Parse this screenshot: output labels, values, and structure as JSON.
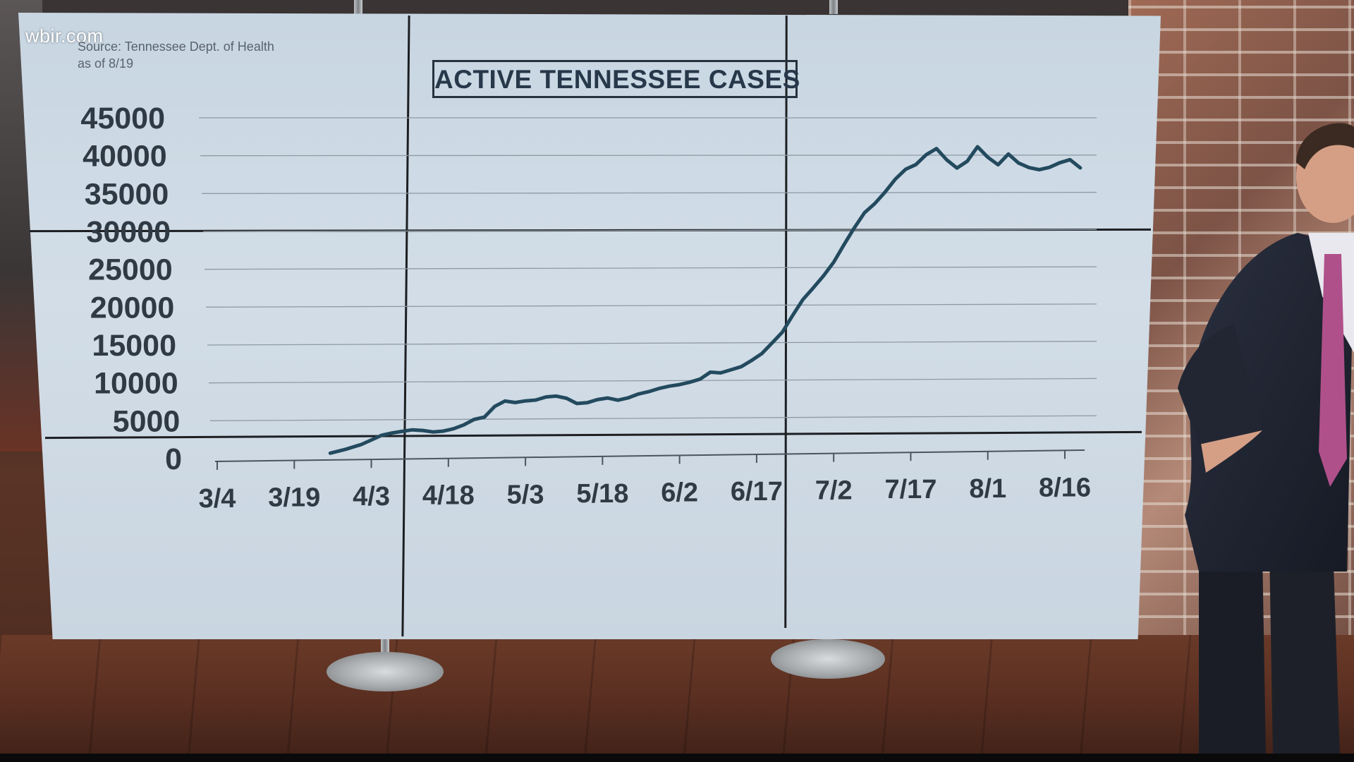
{
  "watermark": "wbir.com",
  "source_line1": "Source: Tennessee Dept. of Health",
  "source_line2": "as of 8/19",
  "colors": {
    "line": "#234a5e",
    "screen": "#cdd9e3",
    "text": "#2f3a45"
  },
  "chart_data": {
    "type": "line",
    "title": "ACTIVE TENNESSEE CASES",
    "xlabel": "",
    "ylabel": "",
    "ylim": [
      0,
      45000
    ],
    "yticks": [
      0,
      5000,
      10000,
      15000,
      20000,
      25000,
      30000,
      35000,
      40000,
      45000
    ],
    "xticks": [
      "3/4",
      "3/19",
      "4/3",
      "4/18",
      "5/3",
      "5/18",
      "6/2",
      "6/17",
      "7/2",
      "7/17",
      "8/1",
      "8/16"
    ],
    "grid": true,
    "legend": "none",
    "series": [
      {
        "x": [
          "3/26",
          "3/29",
          "4/1",
          "4/3",
          "4/5",
          "4/7",
          "4/9",
          "4/11",
          "4/13",
          "4/15",
          "4/17",
          "4/19",
          "4/21",
          "4/23",
          "4/25",
          "4/27",
          "4/29",
          "5/1",
          "5/3",
          "5/5",
          "5/7",
          "5/9",
          "5/11",
          "5/13",
          "5/15",
          "5/17",
          "5/19",
          "5/21",
          "5/23",
          "5/25",
          "5/27",
          "5/29",
          "5/31",
          "6/2",
          "6/4",
          "6/6",
          "6/8",
          "6/10",
          "6/12",
          "6/14",
          "6/16",
          "6/18",
          "6/20",
          "6/22",
          "6/24",
          "6/26",
          "6/28",
          "6/30",
          "7/2",
          "7/4",
          "7/6",
          "7/8",
          "7/10",
          "7/12",
          "7/14",
          "7/16",
          "7/18",
          "7/20",
          "7/22",
          "7/24",
          "7/26",
          "7/28",
          "7/30",
          "8/1",
          "8/3",
          "8/5",
          "8/7",
          "8/9",
          "8/11",
          "8/13",
          "8/15",
          "8/17",
          "8/19"
        ],
        "values": [
          600,
          1100,
          1700,
          2300,
          2900,
          3200,
          3400,
          3600,
          3500,
          3300,
          3400,
          3700,
          4200,
          4900,
          5200,
          6600,
          7300,
          7100,
          7300,
          7400,
          7800,
          7900,
          7600,
          6900,
          7000,
          7400,
          7600,
          7300,
          7600,
          8100,
          8400,
          8800,
          9100,
          9300,
          9600,
          10000,
          10900,
          10800,
          11200,
          11600,
          12400,
          13300,
          14700,
          16100,
          18300,
          20400,
          21900,
          23500,
          25300,
          27600,
          29800,
          31800,
          33000,
          34500,
          36200,
          37500,
          38100,
          39400,
          40200,
          38700,
          37600,
          38500,
          40400,
          39000,
          38000,
          39400,
          38200,
          37600,
          37300,
          37600,
          38200,
          38600,
          37500
        ]
      }
    ]
  }
}
